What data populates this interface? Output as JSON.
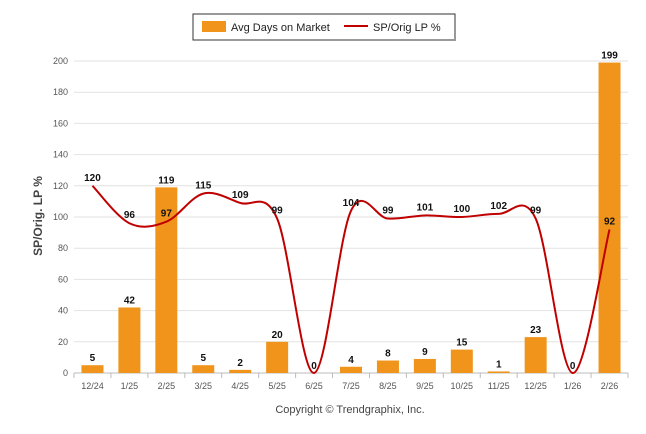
{
  "chart_data": {
    "type": "bar",
    "categories": [
      "12/24",
      "1/25",
      "2/25",
      "3/25",
      "4/25",
      "5/25",
      "6/25",
      "7/25",
      "8/25",
      "9/25",
      "10/25",
      "11/25",
      "12/25",
      "1/26",
      "2/26"
    ],
    "series": [
      {
        "name": "Avg Days on Market",
        "kind": "bar",
        "color": "#f0941c",
        "values": [
          5,
          42,
          119,
          5,
          2,
          20,
          0,
          4,
          8,
          9,
          15,
          1,
          23,
          0,
          199
        ]
      },
      {
        "name": "SP/Orig LP %",
        "kind": "line",
        "color": "#c00000",
        "values": [
          120,
          96,
          97,
          115,
          109,
          99,
          0,
          104,
          99,
          101,
          100,
          102,
          99,
          0,
          92
        ]
      }
    ],
    "ylabel": "SP/Orig. LP %",
    "xlabel": "",
    "ylim": [
      0,
      200
    ],
    "yticks": [
      0,
      20,
      40,
      60,
      80,
      100,
      120,
      140,
      160,
      180,
      200
    ],
    "grid": true,
    "legend": "top-center"
  },
  "footer": "Copyright © Trendgraphix, Inc."
}
